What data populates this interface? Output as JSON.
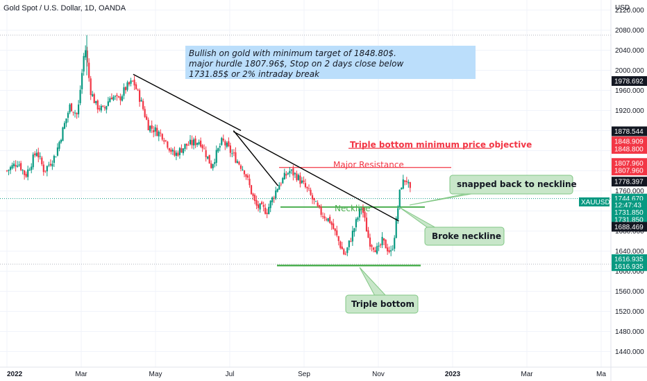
{
  "chart_data": {
    "type": "candlestick",
    "title": "Gold Spot / U.S. Dollar, 1D, OANDA",
    "currency": "USD",
    "symbol": "XAUUSD",
    "ylim": [
      1420,
      2140
    ],
    "y_ticks": [
      1440,
      1480,
      1520,
      1560,
      1600,
      1640,
      1680,
      1720,
      1760,
      1800,
      1840,
      1880,
      1920,
      1960,
      2000,
      2040,
      2080,
      2120
    ],
    "y_tick_labels": [
      "1440.000",
      "1480.000",
      "1520.000",
      "1560.000",
      "1600.000",
      "1640.000",
      "1680.000",
      "1720.000",
      "1760.000",
      "1800.000",
      "1840.000",
      "1880.000",
      "1920.000",
      "1960.000",
      "2000.000",
      "2040.000",
      "2080.000",
      "2120.000"
    ],
    "x_labels": [
      "2022",
      "Mar",
      "May",
      "Jul",
      "Sep",
      "Nov",
      "2023",
      "Mar",
      "Ma"
    ],
    "x_label_months": [
      0,
      2,
      4,
      6,
      8,
      10,
      12,
      14,
      16
    ],
    "months_visible": 16.5,
    "close_anchors": [
      [
        0,
        1800
      ],
      [
        0.3,
        1818
      ],
      [
        0.5,
        1790
      ],
      [
        0.8,
        1840
      ],
      [
        1.0,
        1800
      ],
      [
        1.3,
        1830
      ],
      [
        1.5,
        1880
      ],
      [
        1.7,
        1930
      ],
      [
        1.9,
        1910
      ],
      [
        2.1,
        2050
      ],
      [
        2.25,
        1960
      ],
      [
        2.4,
        1930
      ],
      [
        2.6,
        1920
      ],
      [
        2.8,
        1950
      ],
      [
        3.0,
        1940
      ],
      [
        3.2,
        1965
      ],
      [
        3.4,
        1978
      ],
      [
        3.6,
        1940
      ],
      [
        3.8,
        1890
      ],
      [
        4.2,
        1870
      ],
      [
        4.5,
        1830
      ],
      [
        4.8,
        1850
      ],
      [
        5.2,
        1860
      ],
      [
        5.5,
        1810
      ],
      [
        5.8,
        1860
      ],
      [
        6.1,
        1830
      ],
      [
        6.4,
        1800
      ],
      [
        6.7,
        1730
      ],
      [
        7.0,
        1720
      ],
      [
        7.3,
        1770
      ],
      [
        7.6,
        1800
      ],
      [
        7.8,
        1790
      ],
      [
        8.1,
        1760
      ],
      [
        8.4,
        1720
      ],
      [
        8.7,
        1700
      ],
      [
        8.9,
        1665
      ],
      [
        9.1,
        1630
      ],
      [
        9.3,
        1675
      ],
      [
        9.55,
        1730
      ],
      [
        9.75,
        1660
      ],
      [
        10.0,
        1640
      ],
      [
        10.1,
        1660
      ],
      [
        10.35,
        1635
      ],
      [
        10.45,
        1680
      ],
      [
        10.6,
        1770
      ],
      [
        10.75,
        1785
      ],
      [
        10.9,
        1746
      ]
    ],
    "highlight_points": {
      "spike_high": 2070,
      "resistance_peak": 1807.96,
      "triple_bottom_low": 1616.935
    },
    "levels": {
      "dotted_high": 2070,
      "major_resistance": 1807.96,
      "triple_bottom_objective": 1848.8,
      "neckline": 1731.85,
      "triple_bottom": 1616.935,
      "current_price": 1744.67
    },
    "trendlines": [
      {
        "from": [
          3.4,
          1992
        ],
        "to": [
          6.3,
          1880
        ]
      },
      {
        "from": [
          6.1,
          1878
        ],
        "to": [
          10.55,
          1700
        ]
      },
      {
        "from": [
          6.1,
          1880
        ],
        "to": [
          7.3,
          1770
        ]
      }
    ],
    "price_tags": [
      {
        "label": "1978.692",
        "price": 1978.692,
        "bg": "#131722",
        "fg": "#ffffff"
      },
      {
        "label": "1878.544",
        "price": 1878.544,
        "bg": "#131722",
        "fg": "#ffffff"
      },
      {
        "label": "1848.909",
        "price": 1858.5,
        "bg": "#f23645",
        "fg": "#ffffff"
      },
      {
        "label": "1848.800",
        "price": 1843.5,
        "bg": "#f23645",
        "fg": "#ffffff"
      },
      {
        "label": "1807.960",
        "price": 1815.5,
        "bg": "#f23645",
        "fg": "#ffffff"
      },
      {
        "label": "1807.960",
        "price": 1800.5,
        "bg": "#f23645",
        "fg": "#ffffff"
      },
      {
        "label": "1778.397",
        "price": 1778.397,
        "bg": "#131722",
        "fg": "#ffffff"
      },
      {
        "label": "1744.670",
        "price": 1744.67,
        "bg": "#089981",
        "fg": "#ffffff"
      },
      {
        "label": "12:47:43",
        "price": 1731.5,
        "bg": "#089981",
        "fg": "#ffffff"
      },
      {
        "label": "1731.850",
        "price": 1717.5,
        "bg": "#089981",
        "fg": "#ffffff"
      },
      {
        "label": "1731.850",
        "price": 1703.0,
        "bg": "#089981",
        "fg": "#ffffff"
      },
      {
        "label": "1688.469",
        "price": 1688.469,
        "bg": "#131722",
        "fg": "#ffffff"
      },
      {
        "label": "1616.935",
        "price": 1624.0,
        "bg": "#089981",
        "fg": "#ffffff"
      },
      {
        "label": "1616.935",
        "price": 1610.0,
        "bg": "#089981",
        "fg": "#ffffff"
      }
    ],
    "annotations": {
      "main_note": "Bullish on gold with minimum target of 1848.80$. major hurdle 1807.96$, Stop on 2 days close below 1731.85$ or 2% intraday break",
      "main_note_lines": [
        "Bullish on gold with minimum target of 1848.80$.",
        "major hurdle 1807.96$, Stop on 2 days close below",
        "1731.85$ or 2% intraday break"
      ],
      "objective_label": "Triple bottom minimum price objective",
      "resistance_label": "Major Resistance",
      "neckline_label": "Neckline",
      "snapped_label": "snapped back to neckline",
      "broke_label": "Broke neckline",
      "triple_bottom_label": "Triple bottom"
    },
    "colors": {
      "up": "#089981",
      "down": "#f23645",
      "trendline": "#000000",
      "note_bg": "#bbdefb",
      "callout_bg": "#c8e6c9",
      "callout_border": "#81c784",
      "grid": "#f0f3fa",
      "dotted": "#b2b5be",
      "neckline": "#4caf50"
    }
  }
}
